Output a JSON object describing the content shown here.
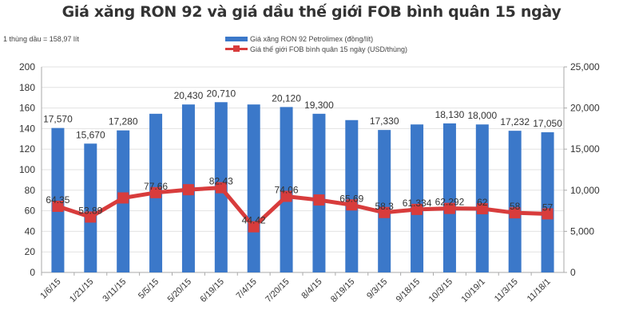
{
  "chart_data": {
    "type": "bar",
    "title": "Giá xăng RON 92 và giá dầu thế giới FOB bình quân 15 ngày",
    "annotation": "1 thùng dầu = 158,97 lít",
    "categories": [
      "1/6/15",
      "1/21/15",
      "3/11/15",
      "5/5/15",
      "5/20/15",
      "6/19/15",
      "7/4/15",
      "7/20/15",
      "8/4/15",
      "8/19/15",
      "9/3/15",
      "9/18/15",
      "10/3/15",
      "10/19/1",
      "11/3/15",
      "11/18/1"
    ],
    "series": [
      {
        "name": "Giá xăng RON 92 Petrolimex (đồng/lít)",
        "type": "bar",
        "axis": "right",
        "color": "#3b78c9",
        "values": [
          17570,
          15670,
          17280,
          19300,
          20430,
          20710,
          20430,
          20120,
          19300,
          18530,
          17330,
          18000,
          18130,
          18000,
          17232,
          17050
        ],
        "labels": [
          "17,570",
          "15,670",
          "17,280",
          "",
          "20,430",
          "20,710",
          "",
          "20,120",
          "19,300",
          "",
          "17,330",
          "",
          "18,130",
          "18,000",
          "17,232",
          "17,050"
        ]
      },
      {
        "name": "Giá thế giới FOB bình quân 15 ngày (USD/thùng)",
        "type": "line",
        "axis": "left",
        "color": "#d83c3c",
        "values": [
          64.35,
          53.89,
          72.5,
          77.66,
          80.5,
          82.43,
          44.42,
          74.06,
          70.5,
          65.69,
          58.3,
          61.334,
          62.292,
          62,
          58,
          57
        ],
        "labels": [
          "64.35",
          "53.89",
          "",
          "77.66",
          "",
          "82.43",
          "44.42",
          "74.06",
          "",
          "65.69",
          "58.3",
          "61.334",
          "62.292",
          "62",
          "58",
          "57"
        ]
      }
    ],
    "left_axis": {
      "min": 0,
      "max": 200,
      "ticks": [
        0,
        20,
        40,
        60,
        80,
        100,
        120,
        140,
        160,
        180,
        200
      ]
    },
    "right_axis": {
      "min": 0,
      "max": 25000,
      "ticks": [
        "0",
        "5,000",
        "10,000",
        "15,000",
        "20,000",
        "25,000"
      ]
    },
    "grid": true,
    "legend_position": "top"
  },
  "legend": {
    "bar_label": "Giá xăng RON 92 Petrolimex (đồng/lít)",
    "line_label": "Giá thế giới FOB bình quân 15 ngày (USD/thùng)"
  }
}
